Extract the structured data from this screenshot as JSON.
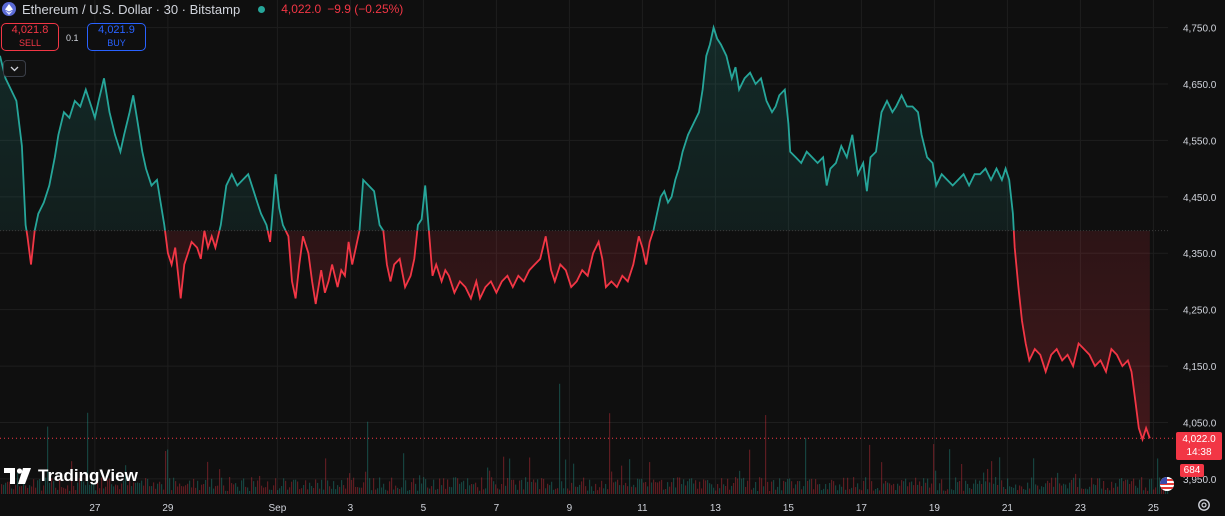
{
  "header": {
    "symbol": "Ethereum / U.S. Dollar · 30 · Bitstamp",
    "last_price": "4,022.0",
    "change": "−9.9 (−0.25%)"
  },
  "trade": {
    "sell_price": "4,021.8",
    "sell_label": "SELL",
    "spread": "0.1",
    "buy_price": "4,021.9",
    "buy_label": "BUY"
  },
  "branding": {
    "logo_text": "TradingView"
  },
  "price_tag": {
    "price": "4,022.0",
    "countdown": "14:38"
  },
  "volume_tag": {
    "value": "684"
  },
  "colors": {
    "up": "#26a69a",
    "down": "#f23645",
    "background": "#0f0f0f",
    "grid": "#1e1e1e",
    "axis_text": "#d1d4dc"
  },
  "chart_data": {
    "type": "area",
    "baseline_value": 4390,
    "y_ticks": [
      3950,
      4050,
      4150,
      4250,
      4350,
      4450,
      4550,
      4650,
      4750
    ],
    "y_tick_labels": [
      "3,950.0",
      "4,050.0",
      "4,150.0",
      "4,250.0",
      "4,350.0",
      "4,450.0",
      "4,550.0",
      "4,650.0",
      "4,750.0"
    ],
    "ylim": [
      3925,
      4790
    ],
    "x_ticks": [
      {
        "label": "27",
        "day": 1
      },
      {
        "label": "29",
        "day": 3
      },
      {
        "label": "Sep",
        "day": 6
      },
      {
        "label": "3",
        "day": 8
      },
      {
        "label": "5",
        "day": 10
      },
      {
        "label": "7",
        "day": 12
      },
      {
        "label": "9",
        "day": 14
      },
      {
        "label": "11",
        "day": 16
      },
      {
        "label": "13",
        "day": 18
      },
      {
        "label": "15",
        "day": 20
      },
      {
        "label": "17",
        "day": 22
      },
      {
        "label": "19",
        "day": 24
      },
      {
        "label": "21",
        "day": 26
      },
      {
        "label": "23",
        "day": 28
      },
      {
        "label": "25",
        "day": 30
      }
    ],
    "xlim": [
      -1.6,
      30.4
    ],
    "last_value": 4022.0,
    "series": [
      {
        "values": [
          [
            -1.6,
            4700
          ],
          [
            -1.45,
            4660
          ],
          [
            -1.3,
            4640
          ],
          [
            -1.15,
            4620
          ],
          [
            -1.0,
            4540
          ],
          [
            -0.9,
            4400
          ],
          [
            -0.85,
            4380
          ],
          [
            -0.75,
            4330
          ],
          [
            -0.65,
            4390
          ],
          [
            -0.55,
            4420
          ],
          [
            -0.4,
            4440
          ],
          [
            -0.25,
            4470
          ],
          [
            -0.1,
            4520
          ],
          [
            0.0,
            4560
          ],
          [
            0.15,
            4600
          ],
          [
            0.3,
            4590
          ],
          [
            0.45,
            4620
          ],
          [
            0.6,
            4610
          ],
          [
            0.75,
            4640
          ],
          [
            0.9,
            4610
          ],
          [
            1.0,
            4590
          ],
          [
            1.1,
            4620
          ],
          [
            1.25,
            4660
          ],
          [
            1.4,
            4600
          ],
          [
            1.55,
            4560
          ],
          [
            1.7,
            4530
          ],
          [
            1.8,
            4560
          ],
          [
            1.95,
            4600
          ],
          [
            2.05,
            4630
          ],
          [
            2.15,
            4590
          ],
          [
            2.3,
            4530
          ],
          [
            2.4,
            4500
          ],
          [
            2.55,
            4470
          ],
          [
            2.7,
            4480
          ],
          [
            2.8,
            4440
          ],
          [
            2.9,
            4400
          ],
          [
            3.0,
            4350
          ],
          [
            3.1,
            4330
          ],
          [
            3.2,
            4360
          ],
          [
            3.35,
            4270
          ],
          [
            3.45,
            4330
          ],
          [
            3.55,
            4350
          ],
          [
            3.65,
            4370
          ],
          [
            3.8,
            4360
          ],
          [
            3.9,
            4340
          ],
          [
            4.0,
            4390
          ],
          [
            4.1,
            4360
          ],
          [
            4.2,
            4380
          ],
          [
            4.3,
            4360
          ],
          [
            4.45,
            4400
          ],
          [
            4.6,
            4470
          ],
          [
            4.75,
            4490
          ],
          [
            4.9,
            4470
          ],
          [
            5.05,
            4480
          ],
          [
            5.2,
            4490
          ],
          [
            5.35,
            4460
          ],
          [
            5.45,
            4440
          ],
          [
            5.55,
            4420
          ],
          [
            5.7,
            4400
          ],
          [
            5.8,
            4370
          ],
          [
            5.95,
            4490
          ],
          [
            6.05,
            4430
          ],
          [
            6.15,
            4400
          ],
          [
            6.3,
            4380
          ],
          [
            6.4,
            4300
          ],
          [
            6.5,
            4270
          ],
          [
            6.6,
            4330
          ],
          [
            6.7,
            4380
          ],
          [
            6.85,
            4350
          ],
          [
            6.95,
            4300
          ],
          [
            7.05,
            4260
          ],
          [
            7.2,
            4320
          ],
          [
            7.3,
            4280
          ],
          [
            7.4,
            4300
          ],
          [
            7.5,
            4330
          ],
          [
            7.65,
            4290
          ],
          [
            7.75,
            4320
          ],
          [
            7.85,
            4310
          ],
          [
            7.95,
            4370
          ],
          [
            8.05,
            4330
          ],
          [
            8.15,
            4360
          ],
          [
            8.25,
            4390
          ],
          [
            8.35,
            4480
          ],
          [
            8.5,
            4470
          ],
          [
            8.65,
            4460
          ],
          [
            8.8,
            4400
          ],
          [
            8.9,
            4390
          ],
          [
            9.0,
            4330
          ],
          [
            9.1,
            4300
          ],
          [
            9.2,
            4330
          ],
          [
            9.35,
            4340
          ],
          [
            9.5,
            4290
          ],
          [
            9.65,
            4310
          ],
          [
            9.75,
            4340
          ],
          [
            9.85,
            4400
          ],
          [
            9.95,
            4410
          ],
          [
            10.05,
            4470
          ],
          [
            10.15,
            4390
          ],
          [
            10.25,
            4310
          ],
          [
            10.35,
            4330
          ],
          [
            10.5,
            4300
          ],
          [
            10.6,
            4320
          ],
          [
            10.7,
            4310
          ],
          [
            10.85,
            4280
          ],
          [
            11.0,
            4300
          ],
          [
            11.15,
            4290
          ],
          [
            11.3,
            4270
          ],
          [
            11.45,
            4300
          ],
          [
            11.55,
            4270
          ],
          [
            11.7,
            4290
          ],
          [
            11.85,
            4300
          ],
          [
            12.0,
            4280
          ],
          [
            12.15,
            4300
          ],
          [
            12.3,
            4310
          ],
          [
            12.45,
            4290
          ],
          [
            12.6,
            4310
          ],
          [
            12.75,
            4300
          ],
          [
            12.9,
            4320
          ],
          [
            13.05,
            4330
          ],
          [
            13.2,
            4340
          ],
          [
            13.35,
            4380
          ],
          [
            13.5,
            4320
          ],
          [
            13.6,
            4300
          ],
          [
            13.75,
            4330
          ],
          [
            13.9,
            4320
          ],
          [
            14.05,
            4290
          ],
          [
            14.2,
            4300
          ],
          [
            14.35,
            4320
          ],
          [
            14.5,
            4310
          ],
          [
            14.65,
            4350
          ],
          [
            14.8,
            4370
          ],
          [
            14.9,
            4340
          ],
          [
            15.0,
            4290
          ],
          [
            15.15,
            4300
          ],
          [
            15.3,
            4290
          ],
          [
            15.45,
            4310
          ],
          [
            15.6,
            4300
          ],
          [
            15.75,
            4330
          ],
          [
            15.9,
            4380
          ],
          [
            16.0,
            4360
          ],
          [
            16.1,
            4330
          ],
          [
            16.2,
            4370
          ],
          [
            16.3,
            4390
          ],
          [
            16.4,
            4420
          ],
          [
            16.5,
            4450
          ],
          [
            16.6,
            4460
          ],
          [
            16.7,
            4440
          ],
          [
            16.8,
            4450
          ],
          [
            16.9,
            4480
          ],
          [
            17.0,
            4500
          ],
          [
            17.1,
            4530
          ],
          [
            17.25,
            4560
          ],
          [
            17.4,
            4580
          ],
          [
            17.55,
            4600
          ],
          [
            17.65,
            4640
          ],
          [
            17.75,
            4700
          ],
          [
            17.85,
            4720
          ],
          [
            17.95,
            4750
          ],
          [
            18.05,
            4730
          ],
          [
            18.15,
            4720
          ],
          [
            18.3,
            4700
          ],
          [
            18.45,
            4660
          ],
          [
            18.55,
            4680
          ],
          [
            18.65,
            4640
          ],
          [
            18.8,
            4660
          ],
          [
            18.95,
            4670
          ],
          [
            19.1,
            4650
          ],
          [
            19.25,
            4660
          ],
          [
            19.4,
            4620
          ],
          [
            19.55,
            4600
          ],
          [
            19.65,
            4610
          ],
          [
            19.75,
            4630
          ],
          [
            19.9,
            4640
          ],
          [
            20.0,
            4580
          ],
          [
            20.05,
            4530
          ],
          [
            20.2,
            4520
          ],
          [
            20.35,
            4510
          ],
          [
            20.5,
            4530
          ],
          [
            20.65,
            4520
          ],
          [
            20.8,
            4510
          ],
          [
            20.95,
            4520
          ],
          [
            21.05,
            4470
          ],
          [
            21.15,
            4500
          ],
          [
            21.3,
            4510
          ],
          [
            21.45,
            4540
          ],
          [
            21.6,
            4520
          ],
          [
            21.75,
            4560
          ],
          [
            21.9,
            4490
          ],
          [
            22.05,
            4510
          ],
          [
            22.15,
            4460
          ],
          [
            22.25,
            4520
          ],
          [
            22.4,
            4530
          ],
          [
            22.55,
            4600
          ],
          [
            22.7,
            4620
          ],
          [
            22.85,
            4600
          ],
          [
            22.95,
            4610
          ],
          [
            23.1,
            4630
          ],
          [
            23.25,
            4610
          ],
          [
            23.4,
            4610
          ],
          [
            23.55,
            4600
          ],
          [
            23.65,
            4560
          ],
          [
            23.8,
            4520
          ],
          [
            23.95,
            4510
          ],
          [
            24.05,
            4470
          ],
          [
            24.2,
            4490
          ],
          [
            24.35,
            4480
          ],
          [
            24.5,
            4470
          ],
          [
            24.65,
            4480
          ],
          [
            24.8,
            4490
          ],
          [
            24.95,
            4470
          ],
          [
            25.1,
            4490
          ],
          [
            25.25,
            4490
          ],
          [
            25.4,
            4500
          ],
          [
            25.55,
            4480
          ],
          [
            25.7,
            4500
          ],
          [
            25.85,
            4480
          ],
          [
            25.95,
            4500
          ],
          [
            26.05,
            4480
          ],
          [
            26.15,
            4420
          ],
          [
            26.2,
            4360
          ],
          [
            26.3,
            4290
          ],
          [
            26.4,
            4230
          ],
          [
            26.5,
            4190
          ],
          [
            26.6,
            4160
          ],
          [
            26.75,
            4180
          ],
          [
            26.9,
            4170
          ],
          [
            27.05,
            4140
          ],
          [
            27.2,
            4170
          ],
          [
            27.35,
            4180
          ],
          [
            27.5,
            4160
          ],
          [
            27.65,
            4170
          ],
          [
            27.8,
            4150
          ],
          [
            27.95,
            4190
          ],
          [
            28.1,
            4180
          ],
          [
            28.25,
            4170
          ],
          [
            28.4,
            4150
          ],
          [
            28.55,
            4160
          ],
          [
            28.7,
            4140
          ],
          [
            28.85,
            4180
          ],
          [
            29.0,
            4170
          ],
          [
            29.15,
            4150
          ],
          [
            29.3,
            4160
          ],
          [
            29.4,
            4140
          ],
          [
            29.5,
            4090
          ],
          [
            29.6,
            4040
          ],
          [
            29.7,
            4020
          ],
          [
            29.8,
            4040
          ],
          [
            29.9,
            4022
          ]
        ]
      }
    ]
  }
}
